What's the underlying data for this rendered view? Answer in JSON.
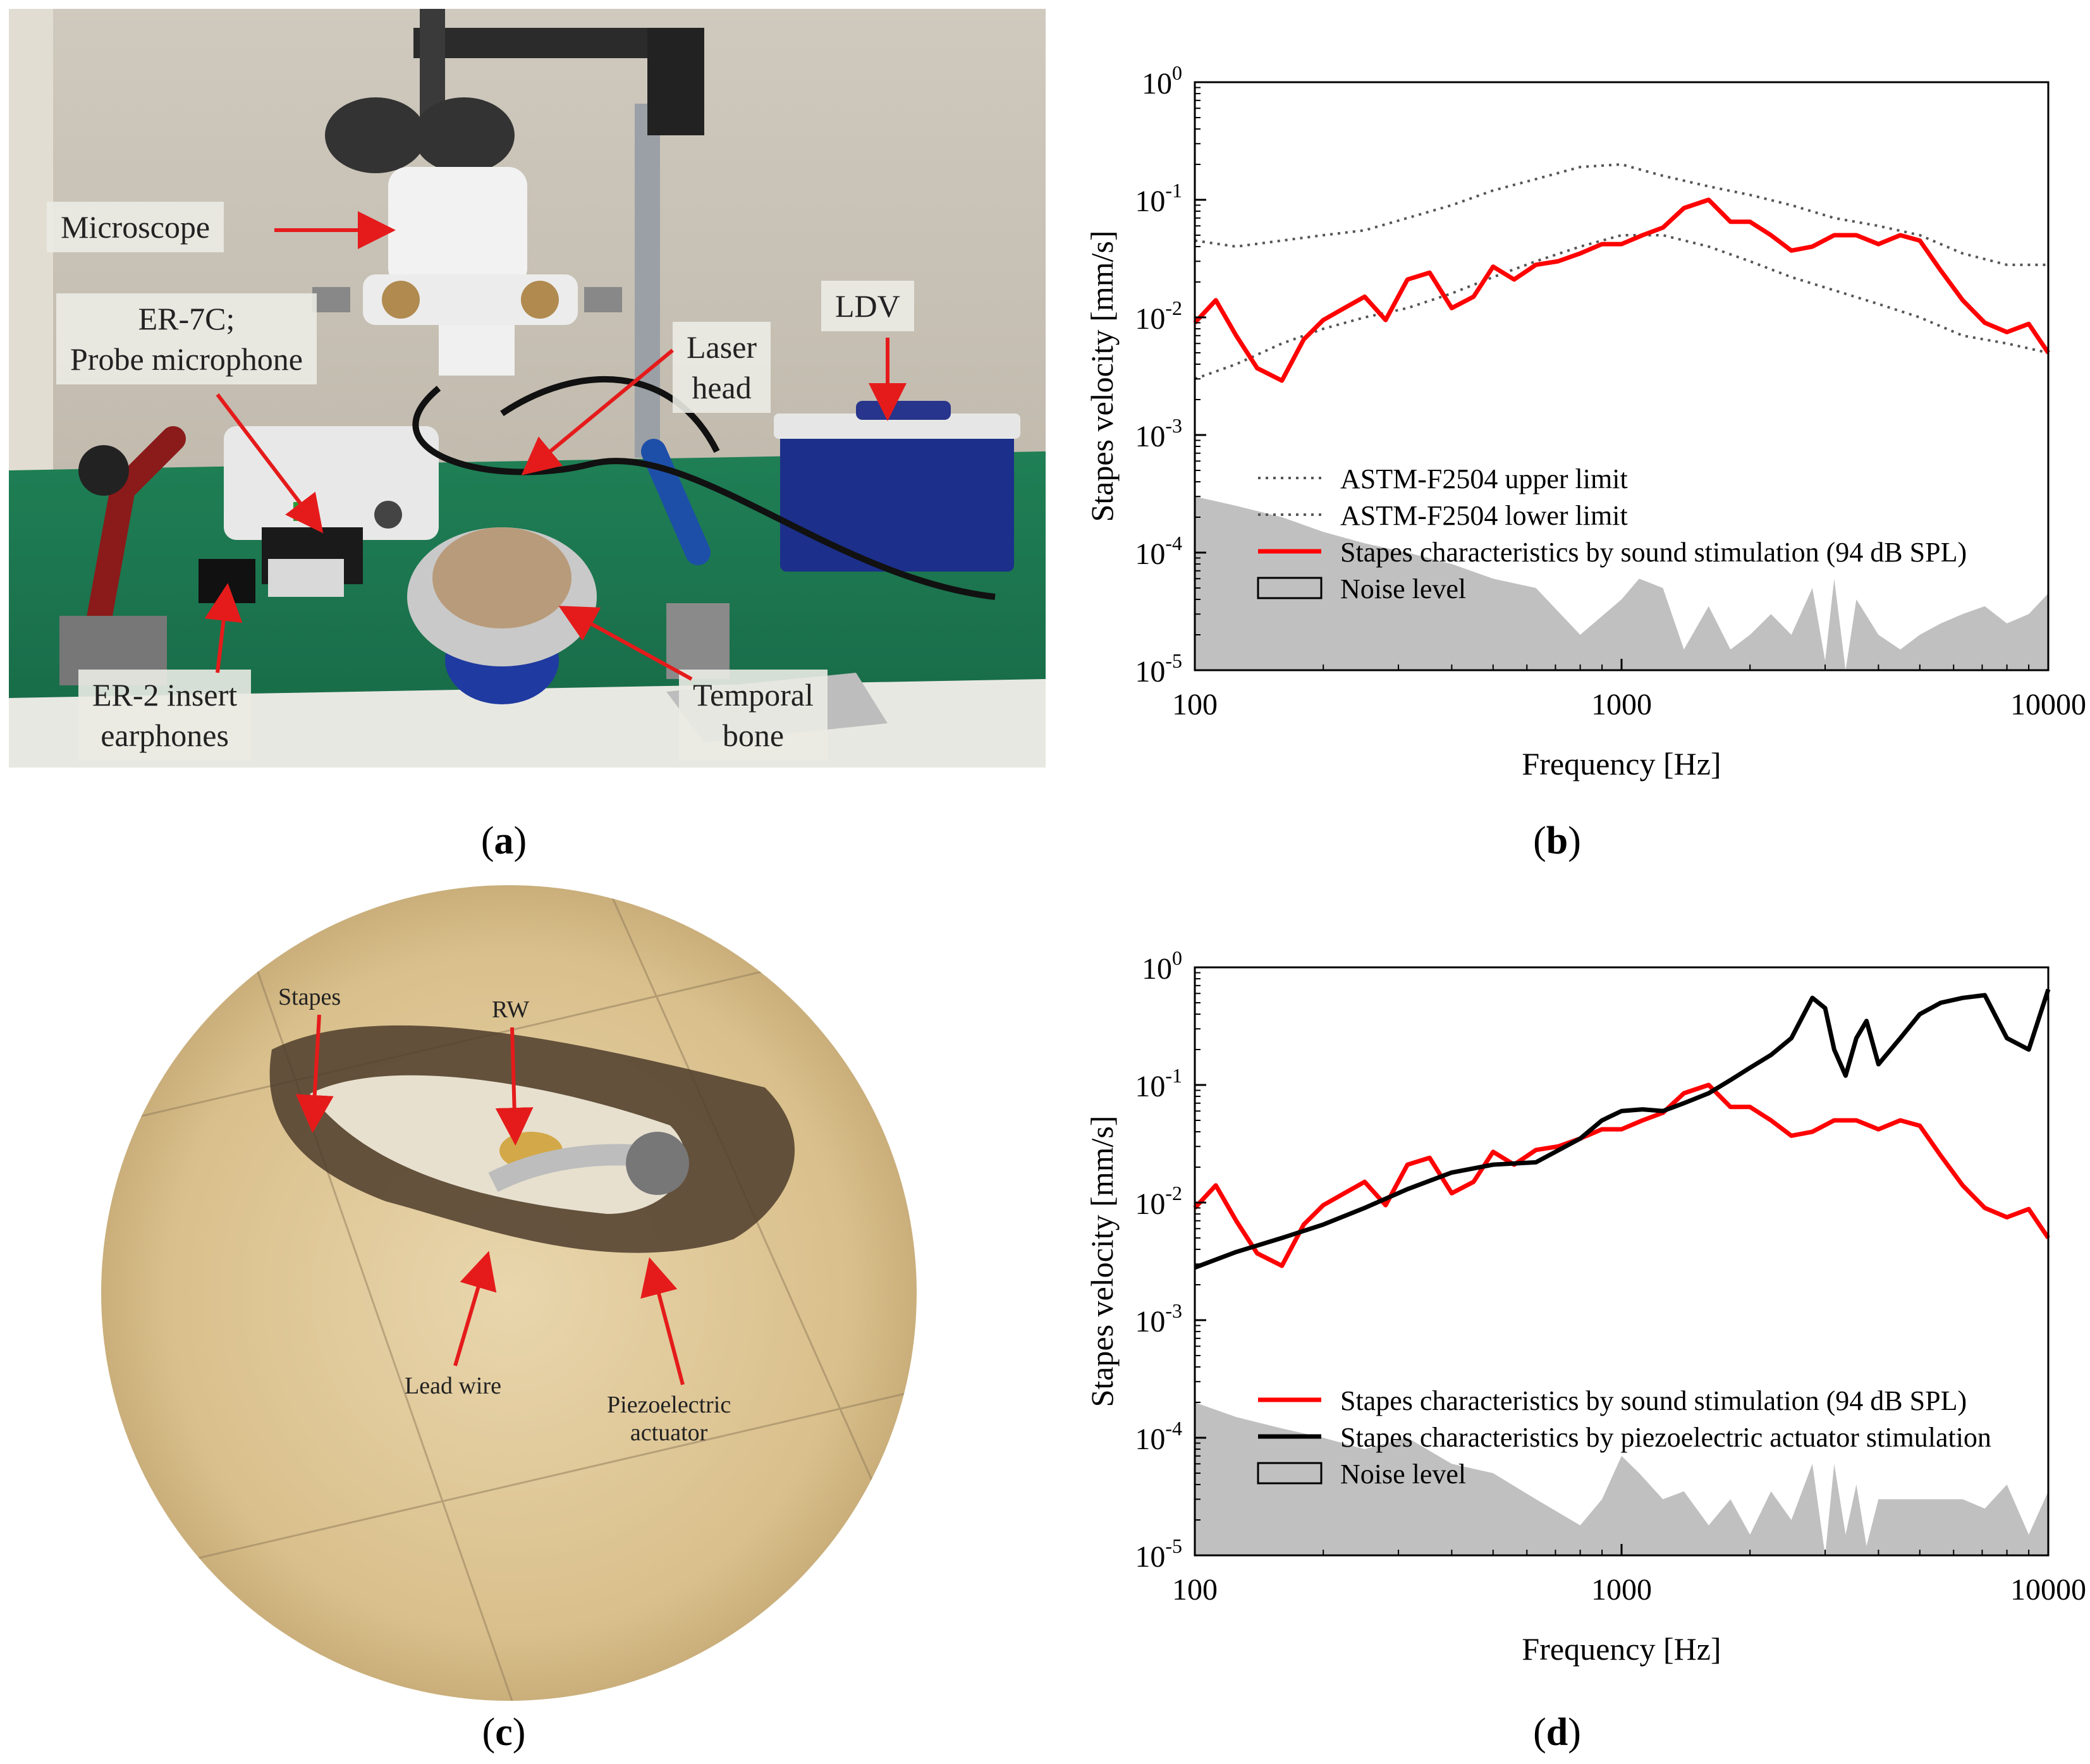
{
  "panel_a": {
    "caption_open": "(",
    "caption_letter": "a",
    "caption_close": ")",
    "labels": {
      "microscope": "Microscope",
      "er7c_line1": "ER-7C;",
      "er7c_line2": "Probe microphone",
      "laser_line1": "Laser",
      "laser_line2": "head",
      "ldv": "LDV",
      "er2_line1": "ER-2 insert",
      "er2_line2": "earphones",
      "temporal_line1": "Temporal",
      "temporal_line2": "bone"
    }
  },
  "panel_c": {
    "caption_open": "(",
    "caption_letter": "c",
    "caption_close": ")",
    "labels": {
      "stapes": "Stapes",
      "rw": "RW",
      "lead_wire": "Lead wire",
      "piezo_line1": "Piezoelectric",
      "piezo_line2": "actuator"
    }
  },
  "panel_b": {
    "caption_open": "(",
    "caption_letter": "b",
    "caption_close": ")"
  },
  "panel_d": {
    "caption_open": "(",
    "caption_letter": "d",
    "caption_close": ")"
  },
  "colors": {
    "sound": "#ff0000",
    "piezo": "#000000",
    "noise": "#c0c0c0",
    "astm": "#555555"
  },
  "chart_data": [
    {
      "id": "b",
      "type": "line",
      "xlabel": "Frequency [Hz]",
      "ylabel": "Stapes velocity [mm/s]",
      "xscale": "log",
      "yscale": "log",
      "xlim": [
        100,
        10000
      ],
      "ylim": [
        1e-05,
        1
      ],
      "x_ticks": [
        "100",
        "1000",
        "10000"
      ],
      "y_ticks": [
        {
          "base": "10",
          "exp": "-5"
        },
        {
          "base": "10",
          "exp": "-4"
        },
        {
          "base": "10",
          "exp": "-3"
        },
        {
          "base": "10",
          "exp": "-2"
        },
        {
          "base": "10",
          "exp": "-1"
        },
        {
          "base": "10",
          "exp": "0"
        }
      ],
      "legend_position": "bottom-left",
      "series": [
        {
          "name": "ASTM-F2504 upper limit",
          "style": "dotted",
          "x": [
            100,
            125,
            160,
            200,
            250,
            315,
            400,
            500,
            630,
            800,
            1000,
            1250,
            1600,
            2000,
            2500,
            3150,
            4000,
            5000,
            6300,
            8000,
            10000
          ],
          "y": [
            0.045,
            0.04,
            0.045,
            0.05,
            0.055,
            0.07,
            0.09,
            0.12,
            0.15,
            0.19,
            0.2,
            0.16,
            0.13,
            0.11,
            0.09,
            0.07,
            0.06,
            0.05,
            0.035,
            0.028,
            0.028
          ]
        },
        {
          "name": "ASTM-F2504 lower limit",
          "style": "dotted",
          "x": [
            100,
            125,
            160,
            200,
            250,
            315,
            400,
            500,
            630,
            800,
            1000,
            1250,
            1600,
            2000,
            2500,
            3150,
            4000,
            5000,
            6300,
            8000,
            10000
          ],
          "y": [
            0.003,
            0.004,
            0.006,
            0.008,
            0.01,
            0.012,
            0.016,
            0.022,
            0.03,
            0.04,
            0.05,
            0.05,
            0.04,
            0.03,
            0.022,
            0.017,
            0.013,
            0.01,
            0.007,
            0.006,
            0.005
          ]
        },
        {
          "name": "Stapes characteristics by sound stimulation (94 dB SPL)",
          "style": "solid",
          "x": [
            100,
            112,
            125,
            140,
            160,
            180,
            200,
            224,
            250,
            280,
            315,
            355,
            400,
            450,
            500,
            560,
            630,
            710,
            800,
            900,
            1000,
            1120,
            1250,
            1400,
            1600,
            1800,
            2000,
            2240,
            2500,
            2800,
            3150,
            3550,
            4000,
            4500,
            5000,
            5600,
            6300,
            7100,
            8000,
            9000,
            10000
          ],
          "y": [
            0.009,
            0.014,
            0.007,
            0.0037,
            0.0029,
            0.0065,
            0.0095,
            0.012,
            0.015,
            0.0095,
            0.021,
            0.024,
            0.012,
            0.015,
            0.027,
            0.021,
            0.028,
            0.03,
            0.035,
            0.042,
            0.042,
            0.05,
            0.058,
            0.085,
            0.1,
            0.065,
            0.065,
            0.05,
            0.037,
            0.04,
            0.05,
            0.05,
            0.042,
            0.05,
            0.045,
            0.025,
            0.014,
            0.009,
            0.0075,
            0.0088,
            0.005
          ]
        },
        {
          "name": "Noise level",
          "style": "area",
          "x": [
            100,
            125,
            160,
            200,
            250,
            315,
            400,
            500,
            630,
            800,
            1000,
            1100,
            1250,
            1400,
            1600,
            1800,
            2000,
            2240,
            2500,
            2800,
            3000,
            3150,
            3350,
            3550,
            4000,
            4500,
            5000,
            5600,
            6300,
            7100,
            8000,
            9000,
            10000
          ],
          "y": [
            0.0003,
            0.00025,
            0.0002,
            0.00015,
            0.00012,
            0.0001,
            8e-05,
            6e-05,
            5e-05,
            2e-05,
            4e-05,
            6e-05,
            5e-05,
            1.5e-05,
            3.5e-05,
            1.5e-05,
            2e-05,
            3e-05,
            2e-05,
            5e-05,
            1.2e-05,
            6e-05,
            1e-05,
            4e-05,
            2e-05,
            1.5e-05,
            2e-05,
            2.5e-05,
            3e-05,
            3.5e-05,
            2.5e-05,
            3e-05,
            4.5e-05
          ]
        }
      ]
    },
    {
      "id": "d",
      "type": "line",
      "xlabel": "Frequency [Hz]",
      "ylabel": "Stapes velocity [mm/s]",
      "xscale": "log",
      "yscale": "log",
      "xlim": [
        100,
        10000
      ],
      "ylim": [
        1e-05,
        1
      ],
      "x_ticks": [
        "100",
        "1000",
        "10000"
      ],
      "y_ticks": [
        {
          "base": "10",
          "exp": "-5"
        },
        {
          "base": "10",
          "exp": "-4"
        },
        {
          "base": "10",
          "exp": "-3"
        },
        {
          "base": "10",
          "exp": "-2"
        },
        {
          "base": "10",
          "exp": "-1"
        },
        {
          "base": "10",
          "exp": "0"
        }
      ],
      "legend_position": "bottom-left",
      "series": [
        {
          "name": "Stapes characteristics by sound stimulation (94 dB SPL)",
          "style": "solid",
          "x": [
            100,
            112,
            125,
            140,
            160,
            180,
            200,
            224,
            250,
            280,
            315,
            355,
            400,
            450,
            500,
            560,
            630,
            710,
            800,
            900,
            1000,
            1120,
            1250,
            1400,
            1600,
            1800,
            2000,
            2240,
            2500,
            2800,
            3150,
            3550,
            4000,
            4500,
            5000,
            5600,
            6300,
            7100,
            8000,
            9000,
            10000
          ],
          "y": [
            0.009,
            0.014,
            0.007,
            0.0037,
            0.0029,
            0.0065,
            0.0095,
            0.012,
            0.015,
            0.0095,
            0.021,
            0.024,
            0.012,
            0.015,
            0.027,
            0.021,
            0.028,
            0.03,
            0.035,
            0.042,
            0.042,
            0.05,
            0.058,
            0.085,
            0.1,
            0.065,
            0.065,
            0.05,
            0.037,
            0.04,
            0.05,
            0.05,
            0.042,
            0.05,
            0.045,
            0.025,
            0.014,
            0.009,
            0.0075,
            0.0088,
            0.005
          ]
        },
        {
          "name": "Stapes characteristics by piezoelectric actuator stimulation",
          "style": "solid",
          "x": [
            100,
            125,
            160,
            200,
            250,
            315,
            400,
            500,
            630,
            800,
            900,
            1000,
            1120,
            1250,
            1400,
            1600,
            1800,
            2000,
            2240,
            2500,
            2800,
            3000,
            3150,
            3350,
            3550,
            3750,
            4000,
            4500,
            5000,
            5600,
            6300,
            7100,
            8000,
            9000,
            10000
          ],
          "y": [
            0.0028,
            0.0038,
            0.005,
            0.0065,
            0.009,
            0.013,
            0.018,
            0.021,
            0.022,
            0.035,
            0.05,
            0.06,
            0.062,
            0.06,
            0.07,
            0.085,
            0.11,
            0.14,
            0.18,
            0.25,
            0.55,
            0.45,
            0.2,
            0.12,
            0.25,
            0.35,
            0.15,
            0.25,
            0.4,
            0.5,
            0.55,
            0.58,
            0.25,
            0.2,
            0.65
          ]
        },
        {
          "name": "Noise level",
          "style": "area",
          "x": [
            100,
            125,
            160,
            200,
            250,
            315,
            400,
            500,
            630,
            800,
            900,
            1000,
            1100,
            1250,
            1400,
            1600,
            1800,
            2000,
            2240,
            2500,
            2800,
            3000,
            3150,
            3350,
            3550,
            3750,
            4000,
            4500,
            5000,
            5600,
            6300,
            7100,
            8000,
            9000,
            10000
          ],
          "y": [
            0.0002,
            0.00015,
            0.00012,
            0.0001,
            8e-05,
            0.0001,
            6e-05,
            5e-05,
            3e-05,
            1.8e-05,
            3e-05,
            7e-05,
            5e-05,
            3e-05,
            3.5e-05,
            1.8e-05,
            3e-05,
            1.5e-05,
            3.5e-05,
            2e-05,
            6e-05,
            1e-05,
            6e-05,
            1.5e-05,
            4e-05,
            1.2e-05,
            3e-05,
            3e-05,
            3e-05,
            3e-05,
            3e-05,
            2.5e-05,
            4e-05,
            1.5e-05,
            3.5e-05
          ]
        }
      ]
    }
  ]
}
